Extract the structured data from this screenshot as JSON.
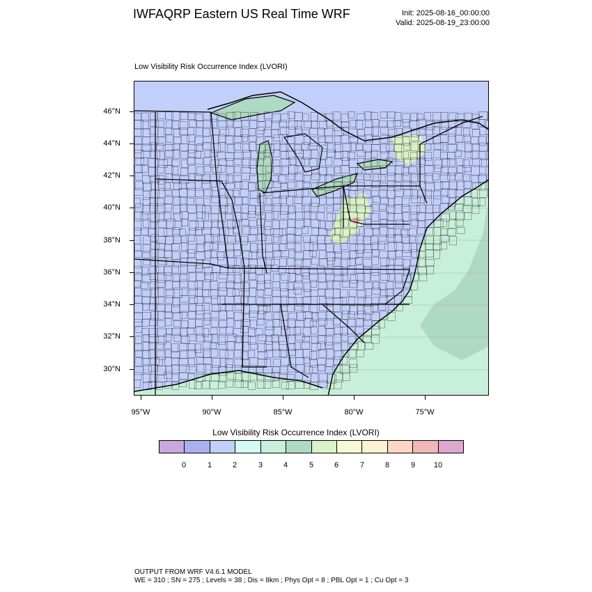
{
  "title": "IWFAQRP Eastern US Real Time WRF",
  "init": "Init: 2025-08-16_00:00:00",
  "valid": "Valid: 2025-08-19_23:00:00",
  "map_subtitle": "Low Visibility Risk Occurrence Index   (LVORI)",
  "lat_labels": [
    "46°N",
    "44°N",
    "42°N",
    "40°N",
    "38°N",
    "36°N",
    "34°N",
    "32°N",
    "30°N"
  ],
  "lon_labels": [
    "95°W",
    "90°W",
    "85°W",
    "80°W",
    "75°W"
  ],
  "colorbar": {
    "title": "Low Visibility Risk Occurrence Index  (LVORI)",
    "labels": [
      "0",
      "1",
      "2",
      "3",
      "4",
      "5",
      "6",
      "7",
      "8",
      "9",
      "10"
    ],
    "colors": [
      "#c9a8dc",
      "#aab1ee",
      "#c3cffb",
      "#d3fbf4",
      "#c8efd9",
      "#aed9c2",
      "#d9f2c7",
      "#f6fbd3",
      "#fdf2d2",
      "#fdd6c4",
      "#f2b7b8",
      "#dca8d0"
    ]
  },
  "map_colors": {
    "land_low": "#c3cffb",
    "water_low": "#c3cffb",
    "ocean_3": "#c8efd9",
    "ocean_4": "#aed9c2",
    "ridge_5": "#d9f2c7",
    "hotspot_9": "#f2b7b8"
  },
  "footer_line1": "OUTPUT FROM WRF V4.6.1 MODEL",
  "footer_line2": "WE = 310 ; SN = 275 ; Levels = 38 ; Dis = 8km ; Phys Opt = 8 ; PBL Opt = 1 ; Cu Opt = 3"
}
